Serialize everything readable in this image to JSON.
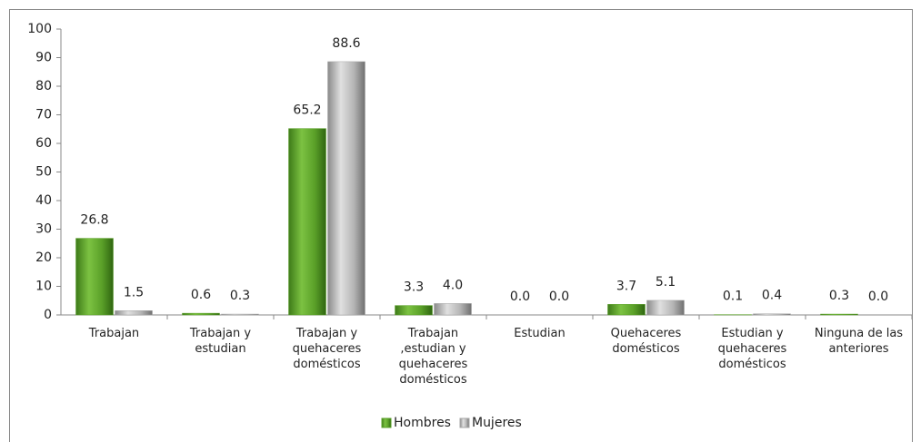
{
  "chart_data": {
    "type": "bar",
    "categories": [
      "Trabajan",
      "Trabajan y estudian",
      "Trabajan y quehaceres domésticos",
      "Trabajan ,estudian y quehaceres domésticos",
      "Estudian",
      "Quehaceres domésticos",
      "Estudian y quehaceres domésticos",
      "Ninguna de las anteriores"
    ],
    "series": [
      {
        "name": "Hombres",
        "color": "#5aa028",
        "values": [
          26.8,
          0.6,
          65.2,
          3.3,
          0,
          3.7,
          0.1,
          0.3
        ],
        "value_labels": [
          "26.8",
          "0.6",
          "65.2",
          "3.3",
          "0.0",
          "3.7",
          "0.1",
          "0.3"
        ]
      },
      {
        "name": "Mujeres",
        "color": "#a6a6a6",
        "values": [
          1.5,
          0.3,
          88.6,
          4,
          0,
          5.1,
          0.4,
          0
        ],
        "value_labels": [
          "1.5",
          "0.3",
          "88.6",
          "4.0",
          "0.0",
          "5.1",
          "0.4",
          "0.0"
        ]
      }
    ],
    "ylim": [
      0,
      100
    ],
    "yticks": [
      0,
      10,
      20,
      30,
      40,
      50,
      60,
      70,
      80,
      90,
      100
    ],
    "grid": false,
    "legend": "bottom"
  }
}
